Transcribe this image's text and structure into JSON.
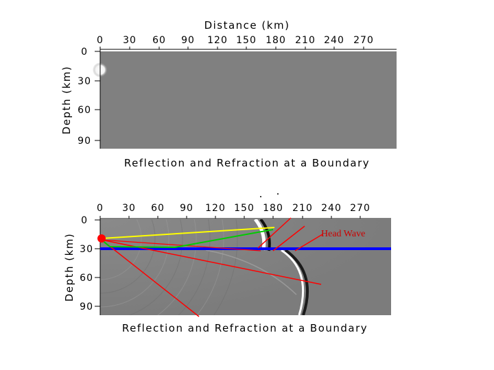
{
  "top_panel": {
    "xlabel": "Distance (km)",
    "ylabel": "Depth (km)",
    "caption": "Reflection and Refraction at a Boundary",
    "x_ticks": [
      "0",
      "30",
      "60",
      "90",
      "120",
      "150",
      "180",
      "210",
      "240",
      "270"
    ],
    "y_ticks": [
      "0",
      "30",
      "60",
      "90"
    ]
  },
  "bottom_panel": {
    "ylabel": "Depth (km)",
    "caption": "Reflection and Refraction at a Boundary",
    "x_ticks": [
      "0",
      "30",
      "60",
      "90",
      "120",
      "150",
      "180",
      "210",
      "240",
      "270"
    ],
    "y_ticks": [
      "0",
      "30",
      "60",
      "90"
    ],
    "annotation": "Head Wave"
  },
  "colors": {
    "background_field": "#808080",
    "direct_ray": "#ffff00",
    "refracted_path": "#00cc00",
    "rays": "#ff0000",
    "boundary": "#0000ff",
    "source": "#ff0000"
  }
}
